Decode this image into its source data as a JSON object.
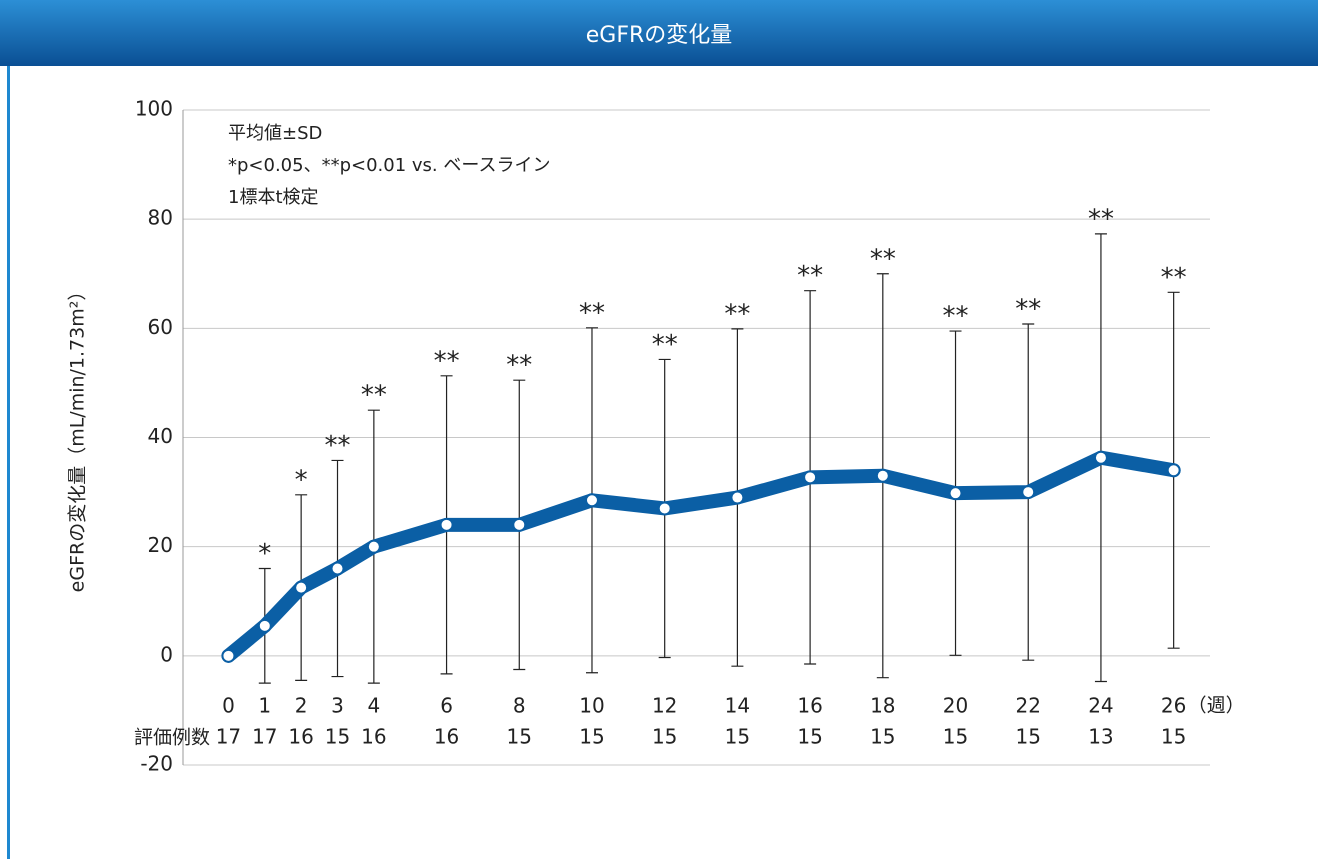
{
  "chart_data": {
    "type": "line",
    "title": "eGFRの変化量",
    "ylabel": "eGFRの変化量（mL/min/1.73m²）",
    "x_unit": "（週）",
    "n_label": "評価例数",
    "notes": [
      "平均値±SD",
      "*p<0.05、**p<0.01 vs. ベースライン",
      "1標本t検定"
    ],
    "color": "#0b5fa5",
    "x": [
      0,
      1,
      2,
      3,
      4,
      6,
      8,
      10,
      12,
      14,
      16,
      18,
      20,
      22,
      24,
      26
    ],
    "values": [
      0,
      5.5,
      12.5,
      16,
      20,
      24,
      24,
      28.5,
      27,
      29,
      32.7,
      33,
      29.8,
      30,
      36.3,
      34
    ],
    "errors": [
      0,
      10.5,
      17,
      19.8,
      25,
      27.3,
      26.5,
      31.6,
      27.3,
      30.9,
      34.2,
      37,
      29.7,
      30.8,
      41,
      32.6
    ],
    "annotations": [
      null,
      "*",
      "*",
      "**",
      "**",
      "**",
      "**",
      "**",
      "**",
      "**",
      "**",
      "**",
      "**",
      "**",
      "**",
      "**"
    ],
    "n": [
      17,
      17,
      16,
      15,
      16,
      16,
      15,
      15,
      15,
      15,
      15,
      15,
      15,
      15,
      13,
      15
    ],
    "xlim": [
      -1.25,
      27
    ],
    "xticks": [
      0,
      1,
      2,
      3,
      4,
      6,
      8,
      10,
      12,
      14,
      16,
      18,
      20,
      22,
      24,
      26
    ],
    "ylim": [
      -20,
      100
    ],
    "yticks": [
      -20,
      0,
      20,
      40,
      60,
      80,
      100
    ],
    "grid": true
  }
}
